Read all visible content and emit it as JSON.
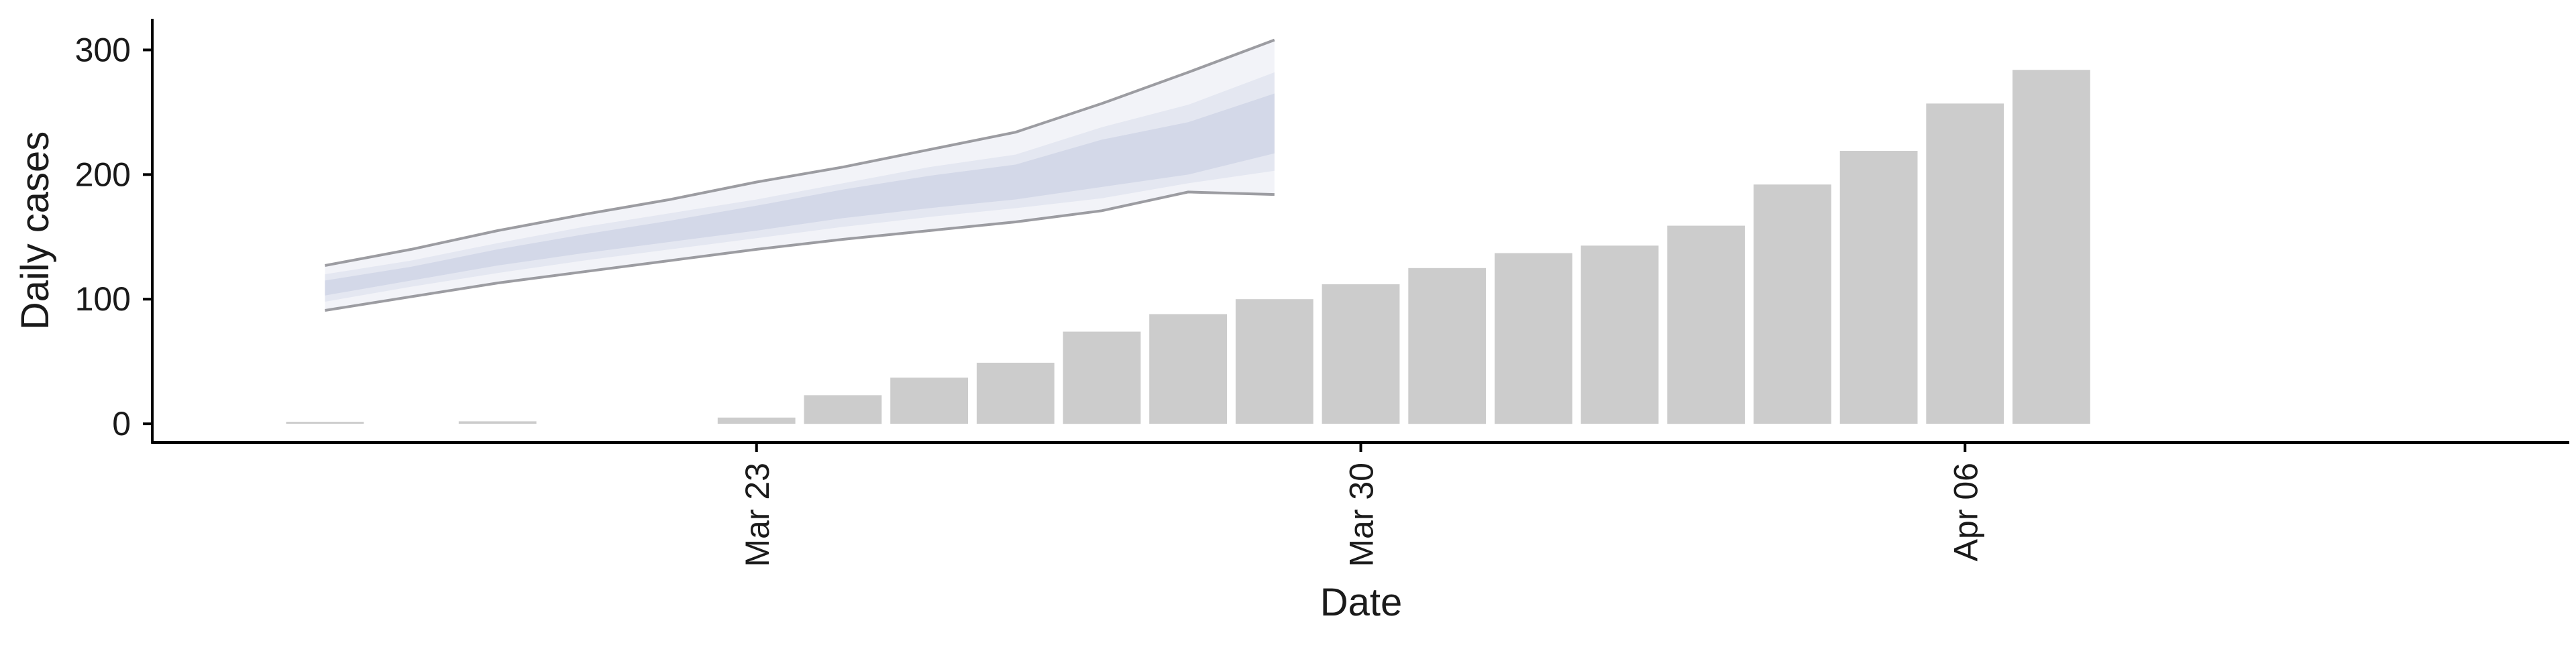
{
  "chart_data": {
    "type": "bar",
    "xlabel": "Date",
    "ylabel": "Daily cases",
    "ylim": [
      -15,
      325
    ],
    "xlim": [
      "2020-03-16",
      "2020-04-13"
    ],
    "x_ticks": [
      {
        "date": "2020-03-23",
        "label": "Mar 23"
      },
      {
        "date": "2020-03-30",
        "label": "Mar 30"
      },
      {
        "date": "2020-04-06",
        "label": "Apr 06"
      }
    ],
    "y_ticks": [
      0,
      100,
      200,
      300
    ],
    "grid": false,
    "colors": {
      "bars": "#cccccc",
      "band_outer": "#f2f3f8",
      "band_mid": "#e4e7f1",
      "band_inner": "#d3d8e8",
      "band_line": "#8c8c92",
      "axis": "#000000"
    },
    "bars": [
      {
        "date": "2020-03-18",
        "value": 1
      },
      {
        "date": "2020-03-20",
        "value": 2
      },
      {
        "date": "2020-03-23",
        "value": 5
      },
      {
        "date": "2020-03-24",
        "value": 23
      },
      {
        "date": "2020-03-25",
        "value": 37
      },
      {
        "date": "2020-03-26",
        "value": 49
      },
      {
        "date": "2020-03-27",
        "value": 74
      },
      {
        "date": "2020-03-28",
        "value": 88
      },
      {
        "date": "2020-03-29",
        "value": 100
      },
      {
        "date": "2020-03-30",
        "value": 112
      },
      {
        "date": "2020-03-31",
        "value": 125
      },
      {
        "date": "2020-04-01",
        "value": 137
      },
      {
        "date": "2020-04-02",
        "value": 143
      },
      {
        "date": "2020-04-03",
        "value": 159
      },
      {
        "date": "2020-04-04",
        "value": 192
      },
      {
        "date": "2020-04-05",
        "value": 219
      },
      {
        "date": "2020-04-06",
        "value": 257
      },
      {
        "date": "2020-04-07",
        "value": 284
      }
    ],
    "forecast_band": {
      "dates": [
        "2020-03-18",
        "2020-03-19",
        "2020-03-20",
        "2020-03-21",
        "2020-03-22",
        "2020-03-23",
        "2020-03-24",
        "2020-03-25",
        "2020-03-26",
        "2020-03-27",
        "2020-03-28",
        "2020-03-29"
      ],
      "outer_lower": [
        91,
        102,
        113,
        122,
        131,
        140,
        148,
        155,
        162,
        171,
        186,
        184
      ],
      "outer_upper": [
        127,
        140,
        155,
        168,
        180,
        194,
        206,
        220,
        234,
        257,
        282,
        308
      ],
      "mid_lower": [
        98,
        110,
        121,
        131,
        140,
        149,
        158,
        166,
        173,
        181,
        193,
        203
      ],
      "mid_upper": [
        120,
        131,
        145,
        158,
        169,
        180,
        193,
        206,
        216,
        238,
        256,
        282
      ],
      "inner_lower": [
        103,
        115,
        127,
        137,
        146,
        155,
        165,
        173,
        180,
        190,
        200,
        217
      ],
      "inner_upper": [
        115,
        126,
        140,
        152,
        163,
        175,
        188,
        199,
        208,
        228,
        242,
        265
      ]
    }
  }
}
